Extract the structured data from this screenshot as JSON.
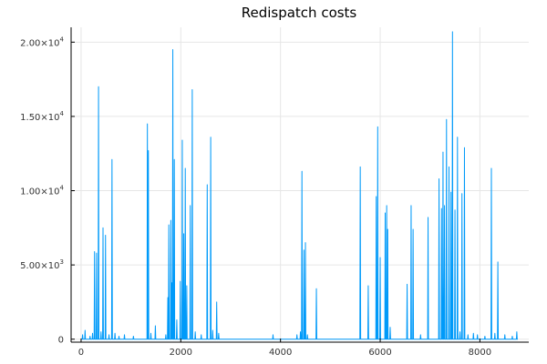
{
  "chart_data": {
    "type": "line",
    "title": "Redispatch costs",
    "xlabel": "",
    "ylabel": "",
    "xlim": [
      -200,
      8980
    ],
    "ylim": [
      -200,
      21000
    ],
    "grid": true,
    "legend": "none",
    "x_ticks": [
      {
        "value": 0,
        "label": "0"
      },
      {
        "value": 2000,
        "label": "2000"
      },
      {
        "value": 4000,
        "label": "4000"
      },
      {
        "value": 6000,
        "label": "6000"
      },
      {
        "value": 8000,
        "label": "8000"
      }
    ],
    "y_ticks": [
      {
        "value": 0,
        "mantissa": "0",
        "exp": ""
      },
      {
        "value": 5000,
        "mantissa": "5.00×10",
        "exp": "3"
      },
      {
        "value": 10000,
        "mantissa": "1.00×10",
        "exp": "4"
      },
      {
        "value": 15000,
        "mantissa": "1.50×10",
        "exp": "4"
      },
      {
        "value": 20000,
        "mantissa": "2.00×10",
        "exp": "4"
      }
    ],
    "series": [
      {
        "color": "#009af9",
        "baseline": 0,
        "x_max": 8760,
        "spikes": [
          [
            30,
            300
          ],
          [
            80,
            600
          ],
          [
            180,
            200
          ],
          [
            230,
            400
          ],
          [
            270,
            5900
          ],
          [
            310,
            5800
          ],
          [
            350,
            17000
          ],
          [
            400,
            500
          ],
          [
            440,
            7500
          ],
          [
            490,
            7000
          ],
          [
            560,
            300
          ],
          [
            620,
            12100
          ],
          [
            680,
            400
          ],
          [
            760,
            200
          ],
          [
            870,
            300
          ],
          [
            1050,
            200
          ],
          [
            1330,
            14500
          ],
          [
            1350,
            12700
          ],
          [
            1400,
            400
          ],
          [
            1490,
            900
          ],
          [
            1700,
            300
          ],
          [
            1740,
            2800
          ],
          [
            1760,
            7700
          ],
          [
            1800,
            8000
          ],
          [
            1820,
            3800
          ],
          [
            1840,
            19500
          ],
          [
            1870,
            12100
          ],
          [
            1920,
            1300
          ],
          [
            1990,
            3900
          ],
          [
            2030,
            13400
          ],
          [
            2060,
            7100
          ],
          [
            2090,
            11500
          ],
          [
            2120,
            3600
          ],
          [
            2190,
            9000
          ],
          [
            2230,
            16800
          ],
          [
            2290,
            500
          ],
          [
            2410,
            300
          ],
          [
            2530,
            10400
          ],
          [
            2600,
            13600
          ],
          [
            2640,
            600
          ],
          [
            2720,
            2500
          ],
          [
            2760,
            400
          ],
          [
            3850,
            300
          ],
          [
            4330,
            300
          ],
          [
            4400,
            500
          ],
          [
            4430,
            11300
          ],
          [
            4470,
            6000
          ],
          [
            4500,
            6500
          ],
          [
            4540,
            300
          ],
          [
            4720,
            3400
          ],
          [
            5600,
            11600
          ],
          [
            5760,
            3600
          ],
          [
            5920,
            9600
          ],
          [
            5950,
            14300
          ],
          [
            6000,
            5500
          ],
          [
            6100,
            8500
          ],
          [
            6130,
            9000
          ],
          [
            6150,
            7400
          ],
          [
            6200,
            800
          ],
          [
            6540,
            3700
          ],
          [
            6620,
            9000
          ],
          [
            6660,
            7400
          ],
          [
            6810,
            300
          ],
          [
            6960,
            8200
          ],
          [
            7180,
            10800
          ],
          [
            7230,
            8800
          ],
          [
            7260,
            12600
          ],
          [
            7290,
            9000
          ],
          [
            7330,
            14800
          ],
          [
            7380,
            11600
          ],
          [
            7420,
            9900
          ],
          [
            7450,
            20700
          ],
          [
            7500,
            8700
          ],
          [
            7550,
            13600
          ],
          [
            7600,
            500
          ],
          [
            7640,
            9800
          ],
          [
            7690,
            12900
          ],
          [
            7760,
            300
          ],
          [
            7870,
            400
          ],
          [
            7950,
            300
          ],
          [
            8100,
            200
          ],
          [
            8230,
            11500
          ],
          [
            8300,
            400
          ],
          [
            8360,
            5200
          ],
          [
            8500,
            300
          ],
          [
            8650,
            200
          ],
          [
            8740,
            500
          ]
        ]
      }
    ]
  }
}
